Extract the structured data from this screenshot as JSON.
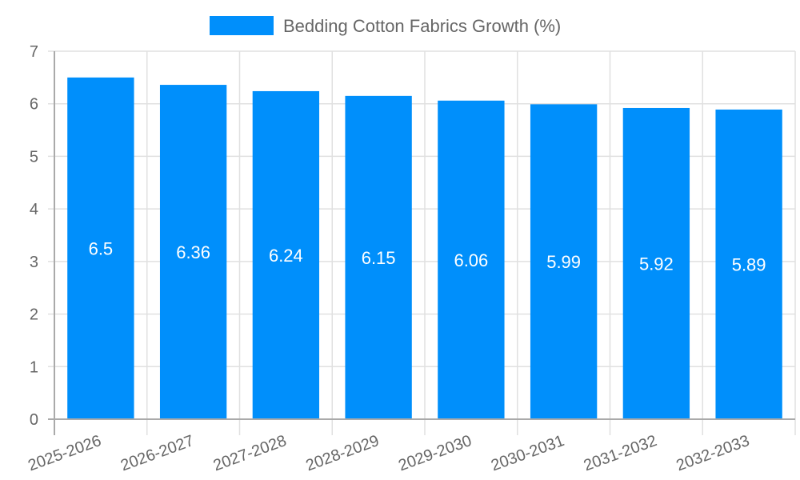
{
  "chart_data": {
    "type": "bar",
    "title": "",
    "xlabel": "",
    "ylabel": "",
    "categories": [
      "2025-2026",
      "2026-2027",
      "2027-2028",
      "2028-2029",
      "2029-2030",
      "2030-2031",
      "2031-2032",
      "2032-2033"
    ],
    "series": [
      {
        "name": "Bedding Cotton Fabrics Growth (%)",
        "values": [
          6.5,
          6.36,
          6.24,
          6.15,
          6.06,
          5.99,
          5.92,
          5.89
        ],
        "color": "#008ffb"
      }
    ],
    "ylim": [
      0,
      7
    ],
    "yticks": [
      0,
      1,
      2,
      3,
      4,
      5,
      6,
      7
    ],
    "grid": true,
    "legend_position": "top",
    "data_labels": true
  },
  "legend": {
    "label": "Bedding Cotton Fabrics Growth (%)",
    "color": "#008ffb"
  },
  "colors": {
    "grid": "#e0e0e0",
    "axis": "#aaaaaa",
    "text": "#666666",
    "bar_label": "#ffffff"
  }
}
